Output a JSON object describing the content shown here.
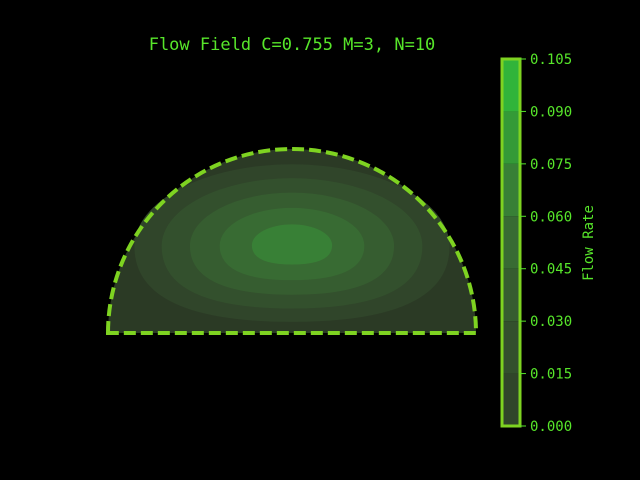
{
  "chart_data": {
    "type": "heatmap",
    "title": "Flow Field C=0.755 M=3, N=10",
    "colorbar": {
      "label": "Flow Rate",
      "range": [
        0.0,
        0.105
      ],
      "ticks": [
        "0.000",
        "0.015",
        "0.030",
        "0.045",
        "0.060",
        "0.075",
        "0.090",
        "0.105"
      ],
      "levels": [
        0.0,
        0.015,
        0.03,
        0.045,
        0.06,
        0.075,
        0.09,
        0.105
      ],
      "colors": [
        "#2b3a25",
        "#30452a",
        "#33502d",
        "#365d30",
        "#386b33",
        "#388036",
        "#349a37",
        "#31b43a"
      ]
    },
    "domain": "semicircle",
    "max_value": 0.09,
    "grid": false,
    "legend": "colorbar-right"
  },
  "colors": {
    "background": "#000000",
    "text": "#57e62a",
    "boundary": "#7ed321",
    "contour_base": "#2b3a25"
  }
}
